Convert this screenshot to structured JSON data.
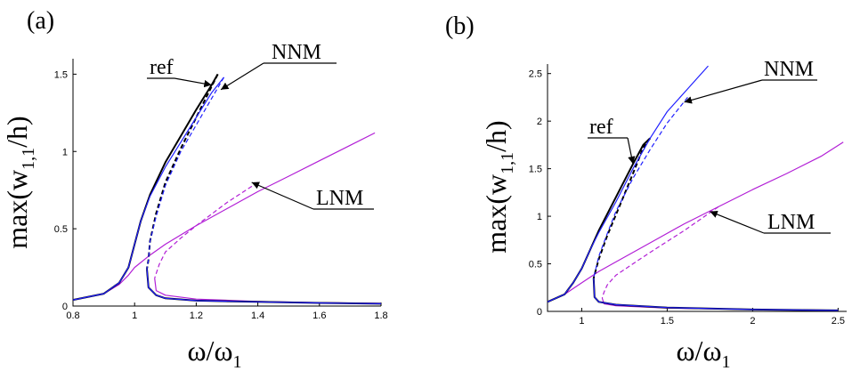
{
  "chart_data": [
    {
      "panel_label": "(a)",
      "type": "line",
      "xlabel": "ω/ω",
      "xlabel_sub": "1",
      "ylabel": "max(w",
      "ylabel_sub": "1,1",
      "ylabel_tail": "/h)",
      "xlim": [
        0.8,
        1.8
      ],
      "ylim": [
        0,
        1.6
      ],
      "xticks": [
        0.8,
        1,
        1.2,
        1.4,
        1.6,
        1.8
      ],
      "yticks": [
        0,
        0.5,
        1,
        1.5
      ],
      "colors": {
        "ref": "#000000",
        "NNM": "#1f1fff",
        "LNM": "#b21fd6"
      },
      "series": [
        {
          "name": "ref",
          "style": "stable",
          "x": [
            0.8,
            0.9,
            0.95,
            0.98,
            1.0,
            1.02,
            1.05,
            1.1,
            1.15,
            1.2,
            1.25,
            1.27
          ],
          "y": [
            0.04,
            0.08,
            0.15,
            0.25,
            0.4,
            0.55,
            0.72,
            0.93,
            1.1,
            1.27,
            1.43,
            1.5
          ]
        },
        {
          "name": "ref",
          "style": "unstable",
          "x": [
            1.27,
            1.2,
            1.15,
            1.1,
            1.07,
            1.05,
            1.045,
            1.04
          ],
          "y": [
            1.5,
            1.22,
            1.02,
            0.8,
            0.6,
            0.42,
            0.3,
            0.24
          ]
        },
        {
          "name": "ref",
          "style": "stable",
          "x": [
            1.04,
            1.045,
            1.07,
            1.1,
            1.2,
            1.4,
            1.6,
            1.8
          ],
          "y": [
            0.24,
            0.12,
            0.07,
            0.05,
            0.035,
            0.027,
            0.02,
            0.015
          ]
        },
        {
          "name": "NNM",
          "style": "stable",
          "x": [
            0.8,
            0.9,
            0.95,
            0.98,
            1.0,
            1.02,
            1.05,
            1.1,
            1.15,
            1.2,
            1.25,
            1.29
          ],
          "y": [
            0.04,
            0.08,
            0.15,
            0.25,
            0.4,
            0.55,
            0.71,
            0.9,
            1.06,
            1.22,
            1.38,
            1.48
          ]
        },
        {
          "name": "NNM",
          "style": "unstable",
          "x": [
            1.29,
            1.22,
            1.15,
            1.1,
            1.07,
            1.05,
            1.045,
            1.04
          ],
          "y": [
            1.48,
            1.24,
            1.0,
            0.78,
            0.58,
            0.42,
            0.3,
            0.24
          ]
        },
        {
          "name": "NNM",
          "style": "stable",
          "x": [
            1.04,
            1.045,
            1.07,
            1.1,
            1.2,
            1.4,
            1.6,
            1.8
          ],
          "y": [
            0.24,
            0.12,
            0.07,
            0.05,
            0.035,
            0.027,
            0.02,
            0.015
          ]
        },
        {
          "name": "LNM",
          "style": "stable",
          "x": [
            0.8,
            0.9,
            0.95,
            0.98,
            1.0,
            1.05,
            1.1,
            1.2,
            1.3,
            1.4,
            1.5,
            1.6,
            1.7,
            1.78
          ],
          "y": [
            0.04,
            0.08,
            0.14,
            0.2,
            0.25,
            0.33,
            0.4,
            0.52,
            0.63,
            0.74,
            0.84,
            0.94,
            1.04,
            1.12
          ]
        },
        {
          "name": "LNM",
          "style": "unstable",
          "x": [
            1.4,
            1.3,
            1.2,
            1.15,
            1.1,
            1.08,
            1.065
          ],
          "y": [
            0.8,
            0.67,
            0.52,
            0.44,
            0.35,
            0.27,
            0.18
          ]
        },
        {
          "name": "LNM",
          "style": "stable",
          "x": [
            1.065,
            1.07,
            1.1,
            1.2,
            1.4,
            1.6,
            1.8
          ],
          "y": [
            0.18,
            0.1,
            0.07,
            0.045,
            0.03,
            0.022,
            0.017
          ]
        }
      ],
      "annotations": [
        {
          "text": "ref",
          "target_x": 1.25,
          "target_y": 1.43
        },
        {
          "text": "NNM",
          "target_x": 1.28,
          "target_y": 1.4
        },
        {
          "text": "LNM",
          "target_x": 1.38,
          "target_y": 0.8
        }
      ]
    },
    {
      "panel_label": "(b)",
      "type": "line",
      "xlabel": "ω/ω",
      "xlabel_sub": "1",
      "ylabel": "max(w",
      "ylabel_sub": "1,1",
      "ylabel_tail": "/h)",
      "xlim": [
        0.8,
        2.55
      ],
      "ylim": [
        0,
        2.6
      ],
      "xticks": [
        1,
        1.5,
        2,
        2.5
      ],
      "yticks": [
        0,
        0.5,
        1,
        1.5,
        2,
        2.5
      ],
      "colors": {
        "ref": "#000000",
        "NNM": "#1f1fff",
        "LNM": "#b21fd6"
      },
      "series": [
        {
          "name": "ref",
          "style": "stable",
          "x": [
            0.8,
            0.9,
            0.95,
            1.0,
            1.05,
            1.1,
            1.2,
            1.3,
            1.36,
            1.4
          ],
          "y": [
            0.1,
            0.18,
            0.3,
            0.45,
            0.65,
            0.85,
            1.2,
            1.55,
            1.75,
            1.82
          ]
        },
        {
          "name": "ref",
          "style": "unstable",
          "x": [
            1.4,
            1.36,
            1.3,
            1.22,
            1.15,
            1.1,
            1.08,
            1.07
          ],
          "y": [
            1.82,
            1.72,
            1.45,
            1.1,
            0.8,
            0.55,
            0.42,
            0.35
          ]
        },
        {
          "name": "ref",
          "style": "stable",
          "x": [
            1.07,
            1.075,
            1.1,
            1.2,
            1.5,
            2.0,
            2.5
          ],
          "y": [
            0.35,
            0.15,
            0.1,
            0.07,
            0.04,
            0.02,
            0.01
          ]
        },
        {
          "name": "NNM",
          "style": "stable",
          "x": [
            0.8,
            0.9,
            0.95,
            1.0,
            1.05,
            1.1,
            1.2,
            1.3,
            1.4,
            1.5,
            1.6,
            1.74
          ],
          "y": [
            0.1,
            0.18,
            0.3,
            0.45,
            0.65,
            0.83,
            1.15,
            1.5,
            1.82,
            2.1,
            2.3,
            2.58
          ]
        },
        {
          "name": "NNM",
          "style": "unstable",
          "x": [
            1.62,
            1.5,
            1.4,
            1.3,
            1.2,
            1.15,
            1.1,
            1.08,
            1.07
          ],
          "y": [
            2.25,
            1.98,
            1.7,
            1.4,
            1.05,
            0.82,
            0.58,
            0.43,
            0.35
          ]
        },
        {
          "name": "NNM",
          "style": "stable",
          "x": [
            1.07,
            1.075,
            1.1,
            1.2,
            1.5,
            2.0,
            2.5
          ],
          "y": [
            0.35,
            0.15,
            0.1,
            0.07,
            0.04,
            0.02,
            0.01
          ]
        },
        {
          "name": "LNM",
          "style": "stable",
          "x": [
            0.8,
            0.9,
            1.0,
            1.1,
            1.2,
            1.4,
            1.6,
            1.8,
            2.0,
            2.2,
            2.4,
            2.53
          ],
          "y": [
            0.1,
            0.18,
            0.3,
            0.42,
            0.52,
            0.72,
            0.92,
            1.1,
            1.28,
            1.45,
            1.63,
            1.78
          ]
        },
        {
          "name": "LNM",
          "style": "unstable",
          "x": [
            1.8,
            1.6,
            1.4,
            1.3,
            1.2,
            1.15,
            1.13,
            1.12
          ],
          "y": [
            1.1,
            0.85,
            0.62,
            0.5,
            0.38,
            0.28,
            0.2,
            0.14
          ]
        },
        {
          "name": "LNM",
          "style": "stable",
          "x": [
            1.12,
            1.13,
            1.2,
            1.5,
            2.0,
            2.5
          ],
          "y": [
            0.14,
            0.08,
            0.06,
            0.035,
            0.02,
            0.012
          ]
        }
      ],
      "annotations": [
        {
          "text": "ref",
          "target_x": 1.3,
          "target_y": 1.55
        },
        {
          "text": "NNM",
          "target_x": 1.6,
          "target_y": 2.2
        },
        {
          "text": "LNM",
          "target_x": 1.75,
          "target_y": 1.05
        }
      ]
    }
  ]
}
